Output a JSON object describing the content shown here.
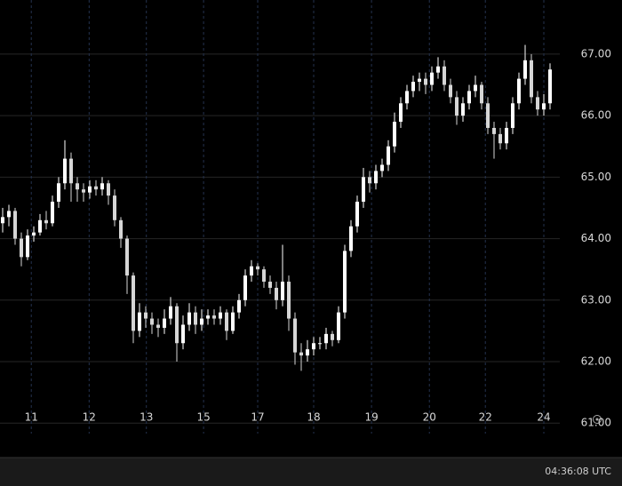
{
  "chart_data": {
    "type": "candlestick",
    "up_color": "#ffffff",
    "down_color": "#d6d6d6",
    "grid": true,
    "ylim": [
      60.83,
      67.88
    ],
    "yticks": [
      {
        "value": 61,
        "label": "61.00"
      },
      {
        "value": 62,
        "label": "62.00"
      },
      {
        "value": 63,
        "label": "63.00"
      },
      {
        "value": 64,
        "label": "64.00"
      },
      {
        "value": 65,
        "label": "65.00"
      },
      {
        "value": 66,
        "label": "66.00"
      },
      {
        "value": 67,
        "label": "67.00"
      }
    ],
    "xlim": [
      -0.43,
      89.57
    ],
    "xticks": [
      {
        "value": 4.6,
        "label": "11"
      },
      {
        "value": 13.9,
        "label": "12"
      },
      {
        "value": 23.1,
        "label": "13"
      },
      {
        "value": 32.3,
        "label": "15"
      },
      {
        "value": 41,
        "label": "17"
      },
      {
        "value": 50,
        "label": "18"
      },
      {
        "value": 59.3,
        "label": "19"
      },
      {
        "value": 68.6,
        "label": "20"
      },
      {
        "value": 77.6,
        "label": "22"
      },
      {
        "value": 87,
        "label": "24"
      }
    ],
    "open": [
      64.25,
      64.35,
      64.45,
      64.0,
      63.7,
      64.05,
      64.1,
      64.3,
      64.25,
      64.6,
      64.9,
      65.3,
      64.9,
      64.8,
      64.75,
      64.85,
      64.8,
      64.9,
      64.7,
      64.3,
      64.0,
      63.4,
      62.5,
      62.8,
      62.7,
      62.6,
      62.55,
      62.7,
      62.9,
      62.3,
      62.6,
      62.8,
      62.6,
      62.7,
      62.75,
      62.7,
      62.8,
      62.5,
      62.8,
      63.0,
      63.4,
      63.55,
      63.5,
      63.3,
      63.2,
      63.0,
      63.3,
      62.7,
      62.15,
      62.1,
      62.2,
      62.3,
      62.3,
      62.45,
      62.35,
      62.8,
      63.8,
      64.2,
      64.6,
      65.0,
      64.9,
      65.1,
      65.2,
      65.5,
      65.9,
      66.2,
      66.4,
      66.55,
      66.6,
      66.5,
      66.7,
      66.8,
      66.5,
      66.3,
      66.0,
      66.2,
      66.4,
      66.5,
      66.2,
      65.8,
      65.7,
      65.55,
      65.8,
      66.2,
      66.6,
      66.9,
      66.3,
      66.1,
      66.2
    ],
    "high": [
      64.5,
      64.55,
      64.5,
      64.1,
      64.15,
      64.2,
      64.4,
      64.45,
      64.7,
      65.0,
      65.6,
      65.4,
      65.0,
      64.9,
      64.95,
      64.95,
      65.0,
      64.95,
      64.8,
      64.35,
      64.05,
      63.45,
      62.95,
      62.9,
      62.8,
      62.7,
      62.85,
      63.05,
      62.95,
      62.75,
      62.95,
      62.9,
      62.85,
      62.85,
      62.85,
      62.9,
      62.85,
      62.9,
      63.1,
      63.5,
      63.65,
      63.6,
      63.55,
      63.4,
      63.3,
      63.9,
      63.4,
      62.8,
      62.3,
      62.35,
      62.4,
      62.4,
      62.55,
      62.5,
      62.9,
      63.9,
      64.3,
      64.7,
      65.15,
      65.1,
      65.2,
      65.3,
      65.6,
      66.05,
      66.3,
      66.5,
      66.65,
      66.7,
      66.7,
      66.8,
      66.95,
      66.9,
      66.6,
      66.4,
      66.3,
      66.5,
      66.65,
      66.55,
      66.3,
      65.9,
      65.8,
      65.9,
      66.3,
      66.7,
      67.15,
      67.0,
      66.4,
      66.35,
      66.85
    ],
    "low": [
      64.1,
      64.2,
      63.9,
      63.55,
      63.65,
      63.95,
      64.05,
      64.15,
      64.2,
      64.5,
      64.8,
      64.6,
      64.6,
      64.6,
      64.65,
      64.7,
      64.7,
      64.55,
      64.2,
      63.85,
      63.1,
      62.3,
      62.4,
      62.55,
      62.45,
      62.4,
      62.45,
      62.6,
      62.0,
      62.2,
      62.5,
      62.45,
      62.5,
      62.6,
      62.6,
      62.6,
      62.35,
      62.45,
      62.7,
      62.9,
      63.3,
      63.4,
      63.2,
      63.1,
      62.85,
      62.9,
      62.5,
      61.95,
      61.85,
      62.0,
      62.1,
      62.2,
      62.2,
      62.25,
      62.3,
      62.7,
      63.7,
      64.1,
      64.5,
      64.75,
      64.8,
      65.0,
      65.1,
      65.4,
      65.8,
      66.1,
      66.3,
      66.4,
      66.35,
      66.4,
      66.6,
      66.4,
      66.2,
      65.85,
      65.9,
      66.1,
      66.3,
      66.1,
      65.7,
      65.3,
      65.45,
      65.45,
      65.7,
      66.1,
      66.5,
      66.2,
      66.0,
      66.0,
      66.1
    ],
    "close": [
      64.35,
      64.45,
      64.0,
      63.7,
      64.05,
      64.1,
      64.3,
      64.25,
      64.6,
      64.9,
      65.3,
      64.9,
      64.8,
      64.75,
      64.85,
      64.8,
      64.9,
      64.7,
      64.3,
      64.0,
      63.4,
      62.5,
      62.8,
      62.7,
      62.6,
      62.55,
      62.7,
      62.9,
      62.3,
      62.6,
      62.8,
      62.6,
      62.7,
      62.75,
      62.7,
      62.8,
      62.5,
      62.8,
      63.0,
      63.4,
      63.55,
      63.5,
      63.3,
      63.2,
      63.0,
      63.3,
      62.7,
      62.15,
      62.1,
      62.2,
      62.3,
      62.3,
      62.45,
      62.35,
      62.8,
      63.8,
      64.2,
      64.6,
      65.0,
      64.9,
      65.1,
      65.2,
      65.5,
      65.9,
      66.2,
      66.4,
      66.55,
      66.6,
      66.5,
      66.7,
      66.8,
      66.5,
      66.3,
      66.0,
      66.2,
      66.4,
      66.5,
      66.2,
      65.8,
      65.7,
      65.55,
      65.8,
      66.2,
      66.6,
      66.9,
      66.3,
      66.1,
      66.2,
      66.75
    ]
  },
  "clock": "04:36:08 UTC"
}
